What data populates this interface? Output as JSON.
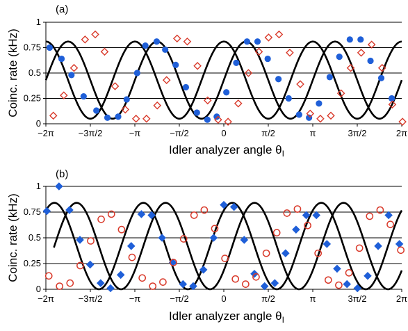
{
  "chart_data": [
    {
      "type": "scatter",
      "panel_label": "(a)",
      "xlabel": "Idler analyzer angle θ",
      "xlabel_sub": "I",
      "ylabel": "Coinc. rate (kHz)",
      "xlim": [
        -6.2832,
        6.2832
      ],
      "ylim": [
        0,
        1
      ],
      "yticks": [
        0,
        0.25,
        0.5,
        0.75,
        1
      ],
      "ytick_labels": [
        "0",
        "0.25",
        "0.5",
        "0.75",
        "1"
      ],
      "xticks": [
        -6.2832,
        -4.7124,
        -3.1416,
        -1.5708,
        0,
        1.5708,
        3.1416,
        4.7124,
        6.2832
      ],
      "xtick_labels": [
        "−2π",
        "−3π/2",
        "−π",
        "−π/2",
        "0",
        "π/2",
        "π",
        "3π/2",
        "2π"
      ],
      "grid": "horizontal",
      "fit_curves": [
        {
          "amplitude": 0.38,
          "offset": 0.43,
          "phase": 1.57,
          "color": "#000000"
        },
        {
          "amplitude": 0.38,
          "offset": 0.43,
          "phase": 0.0,
          "color": "#000000"
        }
      ],
      "series": [
        {
          "marker": "circle",
          "color": "#1f5fd8",
          "x": [
            -6.15,
            -5.73,
            -5.38,
            -4.95,
            -4.5,
            -4.11,
            -3.73,
            -3.43,
            -3.06,
            -2.77,
            -2.37,
            -2.07,
            -1.7,
            -1.34,
            -0.95,
            -0.58,
            -0.25,
            0.09,
            0.44,
            0.82,
            1.19,
            1.55,
            1.93,
            2.29,
            2.66,
            3.01,
            3.36,
            3.74,
            4.08,
            4.45,
            4.83,
            5.18,
            5.56,
            5.93
          ],
          "y": [
            0.75,
            0.64,
            0.48,
            0.27,
            0.13,
            0.06,
            0.07,
            0.24,
            0.5,
            0.77,
            0.81,
            0.73,
            0.58,
            0.36,
            0.11,
            0.04,
            0.07,
            0.31,
            0.6,
            0.81,
            0.81,
            0.64,
            0.44,
            0.25,
            0.09,
            0.06,
            0.2,
            0.46,
            0.66,
            0.83,
            0.83,
            0.62,
            0.45,
            0.25
          ]
        },
        {
          "marker": "diamond",
          "color": "#d93a2b",
          "x": [
            -6.02,
            -5.65,
            -5.29,
            -4.9,
            -4.54,
            -4.21,
            -3.84,
            -3.48,
            -3.1,
            -2.73,
            -2.35,
            -2.02,
            -1.65,
            -1.29,
            -0.93,
            -0.57,
            -0.2,
            0.15,
            0.51,
            0.87,
            1.24,
            1.58,
            1.95,
            2.33,
            2.7,
            3.05,
            3.41,
            3.78,
            4.14,
            4.48,
            4.85,
            5.22,
            5.59,
            5.95,
            6.31
          ],
          "y": [
            0.08,
            0.28,
            0.55,
            0.83,
            0.88,
            0.71,
            0.37,
            0.14,
            0.05,
            0.05,
            0.18,
            0.43,
            0.84,
            0.81,
            0.57,
            0.23,
            0.04,
            0.02,
            0.2,
            0.5,
            0.71,
            0.85,
            0.88,
            0.7,
            0.39,
            0.1,
            0.05,
            0.08,
            0.3,
            0.55,
            0.7,
            0.78,
            0.55,
            0.19,
            0.02
          ]
        }
      ]
    },
    {
      "type": "scatter",
      "panel_label": "(b)",
      "xlabel": "Idler analyzer angle θ",
      "xlabel_sub": "I",
      "ylabel": "Coinc. rate (kHz)",
      "xlim": [
        -6.2832,
        6.2832
      ],
      "ylim": [
        0,
        1
      ],
      "yticks": [
        0,
        0.25,
        0.5,
        0.75,
        1
      ],
      "ytick_labels": [
        "0",
        "0.25",
        "0.5",
        "0.75",
        "1"
      ],
      "xticks": [
        -6.2832,
        -4.7124,
        -3.1416,
        -1.5708,
        0,
        1.5708,
        3.1416,
        4.7124,
        6.2832
      ],
      "xtick_labels": [
        "−2π",
        "−3π/2",
        "−π",
        "−π/2",
        "0",
        "π/2",
        "π",
        "3π/2",
        "2π"
      ],
      "grid": "horizontal",
      "fit_curves": [
        {
          "amplitude": 0.42,
          "offset": 0.42,
          "phase": -0.6,
          "color": "#000000",
          "x_start": -6.0
        },
        {
          "amplitude": 0.42,
          "offset": 0.42,
          "phase": 0.97,
          "color": "#000000"
        }
      ],
      "series": [
        {
          "marker": "diamond",
          "color": "#1f5fd8",
          "x": [
            -6.25,
            -5.82,
            -5.45,
            -5.08,
            -4.72,
            -4.35,
            -4.0,
            -3.64,
            -3.27,
            -2.91,
            -2.55,
            -2.18,
            -1.8,
            -1.44,
            -1.08,
            -0.72,
            -0.36,
            0.0,
            0.36,
            0.72,
            1.08,
            1.44,
            1.8,
            2.18,
            2.55,
            2.91,
            3.27,
            3.64,
            4.0,
            4.35,
            4.72,
            5.08,
            5.45,
            5.82,
            6.2
          ],
          "y": [
            0.76,
            1.0,
            0.77,
            0.48,
            0.24,
            0.06,
            0.01,
            0.14,
            0.42,
            0.73,
            0.72,
            0.5,
            0.26,
            0.05,
            0.03,
            0.19,
            0.5,
            0.82,
            0.8,
            0.48,
            0.15,
            0.03,
            0.06,
            0.35,
            0.58,
            0.72,
            0.72,
            0.44,
            0.2,
            0.05,
            0.01,
            0.13,
            0.42,
            0.72,
            0.44
          ]
        },
        {
          "marker": "circle-open",
          "color": "#d93a2b",
          "x": [
            -6.18,
            -5.8,
            -5.43,
            -5.07,
            -4.7,
            -4.33,
            -3.97,
            -3.61,
            -3.24,
            -2.88,
            -2.51,
            -2.15,
            -1.78,
            -1.42,
            -1.05,
            -0.69,
            -0.32,
            0.04,
            0.41,
            0.77,
            1.14,
            1.5,
            1.87,
            2.23,
            2.6,
            2.96,
            3.33,
            3.69,
            4.06,
            4.42,
            4.79,
            5.15,
            5.52,
            5.88,
            6.25
          ],
          "y": [
            0.13,
            0.03,
            0.06,
            0.23,
            0.47,
            0.68,
            0.73,
            0.58,
            0.31,
            0.11,
            0.03,
            0.07,
            0.26,
            0.49,
            0.72,
            0.77,
            0.59,
            0.3,
            0.1,
            0.05,
            0.12,
            0.35,
            0.55,
            0.74,
            0.78,
            0.62,
            0.35,
            0.09,
            0.04,
            0.16,
            0.4,
            0.71,
            0.77,
            0.63,
            0.38
          ]
        }
      ]
    }
  ]
}
